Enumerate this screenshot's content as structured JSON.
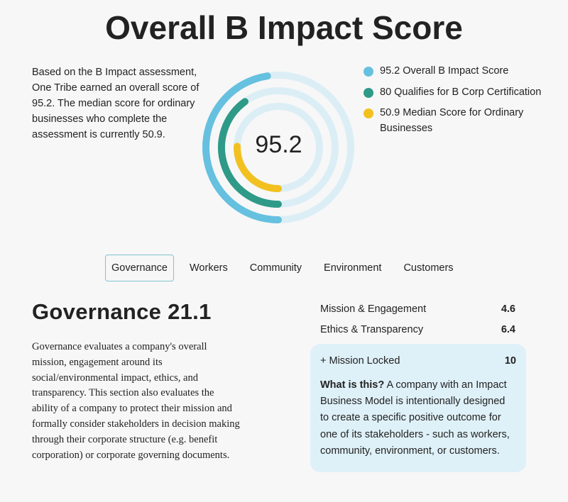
{
  "title": "Overall B Impact Score",
  "intro_text": "Based on the B Impact assessment, One Tribe earned an overall score of 95.2. The median score for ordinary businesses who complete the assessment is currently 50.9.",
  "center_score": "95.2",
  "colors": {
    "overall": "#66c0df",
    "qualifies": "#2e9a87",
    "median": "#f2c120",
    "track": "#dceef5",
    "tab_border": "#7fc3cc",
    "info_bg": "#dff1f8"
  },
  "chart_data": {
    "type": "radial-bar",
    "max": 200,
    "rings": [
      {
        "name": "95.2 Overall B Impact Score",
        "value": 95.2
      },
      {
        "name": "80 Qualifies for B Corp Certification",
        "value": 80
      },
      {
        "name": "50.9 Median Score for Ordinary Businesses",
        "value": 50.9
      }
    ]
  },
  "legend": [
    {
      "label": "95.2 Overall B Impact Score"
    },
    {
      "label": "80 Qualifies for B Corp Certification"
    },
    {
      "label": "50.9 Median Score for Ordinary Businesses"
    }
  ],
  "tabs": [
    {
      "label": "Governance"
    },
    {
      "label": "Workers"
    },
    {
      "label": "Community"
    },
    {
      "label": "Environment"
    },
    {
      "label": "Customers"
    }
  ],
  "section": {
    "title": "Governance 21.1",
    "description": "Governance evaluates a company's overall mission, engagement around its social/environmental impact, ethics, and transparency. This section also evaluates the ability of a company to protect their mission and formally consider stakeholders in decision making through their corporate structure (e.g. benefit corporation) or corporate governing documents."
  },
  "metrics": [
    {
      "label": "Mission & Engagement",
      "value": "4.6"
    },
    {
      "label": "Ethics & Transparency",
      "value": "6.4"
    }
  ],
  "info_box": {
    "label": "+ Mission Locked",
    "value": "10",
    "question": "What is this?",
    "answer": " A company with an Impact Business Model is intentionally designed to create a specific positive outcome for one of its stakeholders - such as workers, community, environment, or customers."
  }
}
